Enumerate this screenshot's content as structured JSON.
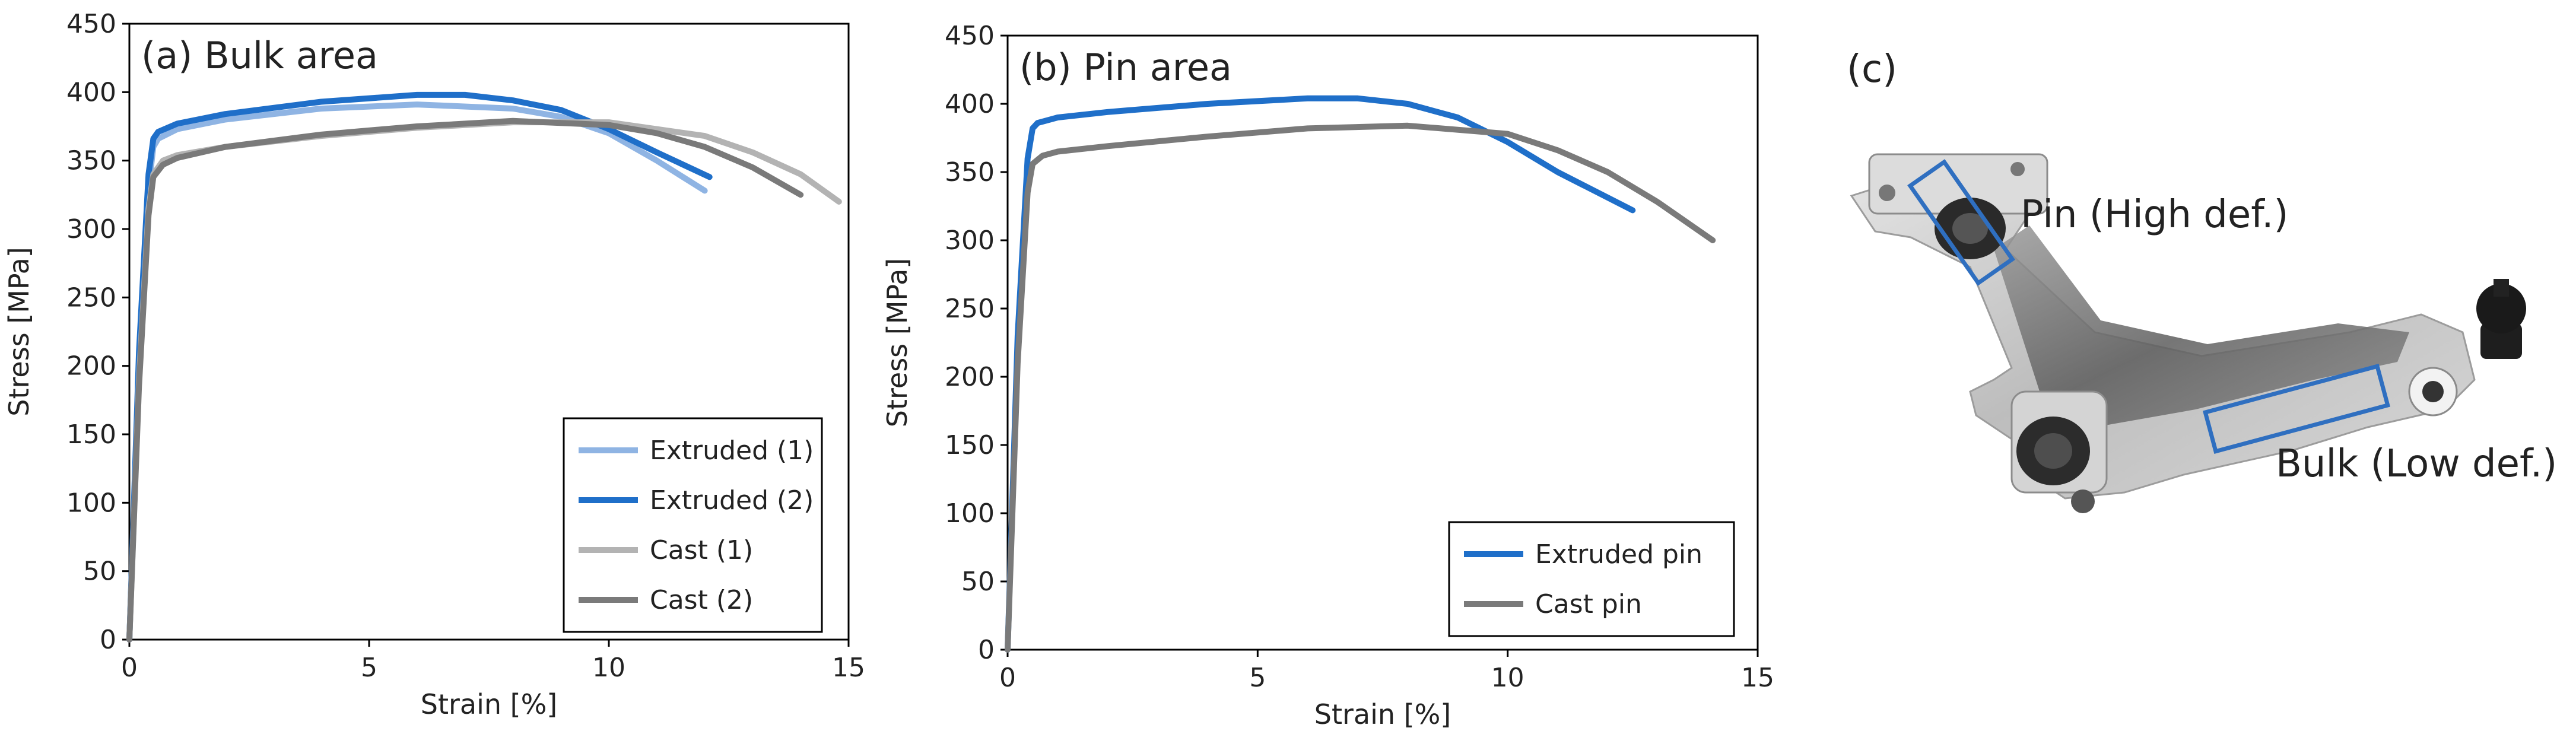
{
  "chart_data": [
    {
      "type": "line",
      "title": "(a) Bulk area",
      "xlabel": "Strain [%]",
      "ylabel": "Stress [MPa]",
      "xlim": [
        0,
        15
      ],
      "ylim": [
        0,
        450
      ],
      "xticks": [
        0,
        5,
        10,
        15
      ],
      "yticks": [
        0,
        50,
        100,
        150,
        200,
        250,
        300,
        350,
        400,
        450
      ],
      "grid": false,
      "legend_position": "bottom-right",
      "series": [
        {
          "name": "Extruded (1)",
          "color": "#8fb4e3",
          "x": [
            0,
            0.2,
            0.4,
            0.5,
            0.6,
            1,
            2,
            4,
            6,
            8,
            9,
            10,
            11,
            12
          ],
          "y": [
            0,
            200,
            330,
            360,
            366,
            373,
            380,
            388,
            391,
            388,
            382,
            370,
            350,
            328
          ]
        },
        {
          "name": "Extruded (2)",
          "color": "#1f6fc9",
          "x": [
            0,
            0.2,
            0.4,
            0.5,
            0.6,
            1,
            2,
            4,
            6,
            7,
            8,
            9,
            10,
            11,
            12.1
          ],
          "y": [
            0,
            210,
            340,
            366,
            371,
            377,
            384,
            393,
            398,
            398,
            394,
            387,
            373,
            356,
            338
          ]
        },
        {
          "name": "Cast (1)",
          "color": "#b3b3b3",
          "x": [
            0,
            0.2,
            0.4,
            0.5,
            0.7,
            1,
            2,
            4,
            6,
            8,
            10,
            12,
            13,
            14,
            14.8
          ],
          "y": [
            0,
            190,
            315,
            340,
            350,
            354,
            360,
            368,
            374,
            378,
            378,
            368,
            356,
            340,
            320
          ]
        },
        {
          "name": "Cast (2)",
          "color": "#7a7a7a",
          "x": [
            0,
            0.2,
            0.4,
            0.5,
            0.7,
            1,
            2,
            4,
            6,
            8,
            10,
            11,
            12,
            13,
            14
          ],
          "y": [
            0,
            185,
            310,
            338,
            347,
            352,
            360,
            369,
            375,
            379,
            376,
            370,
            360,
            345,
            325
          ]
        }
      ]
    },
    {
      "type": "line",
      "title": "(b) Pin area",
      "xlabel": "Strain [%]",
      "ylabel": "Stress [MPa]",
      "xlim": [
        0,
        15
      ],
      "ylim": [
        0,
        450
      ],
      "xticks": [
        0,
        5,
        10,
        15
      ],
      "yticks": [
        0,
        50,
        100,
        150,
        200,
        250,
        300,
        350,
        400,
        450
      ],
      "grid": false,
      "legend_position": "bottom-right",
      "series": [
        {
          "name": "Extruded pin",
          "color": "#1f6fc9",
          "x": [
            0,
            0.2,
            0.4,
            0.5,
            0.6,
            1,
            2,
            4,
            6,
            7,
            8,
            9,
            10,
            11,
            12.5
          ],
          "y": [
            0,
            230,
            360,
            382,
            386,
            390,
            394,
            400,
            404,
            404,
            400,
            390,
            372,
            350,
            322
          ]
        },
        {
          "name": "Cast pin",
          "color": "#7a7a7a",
          "x": [
            0,
            0.2,
            0.4,
            0.5,
            0.7,
            1,
            2,
            4,
            6,
            8,
            10,
            11,
            12,
            13,
            14.1
          ],
          "y": [
            0,
            210,
            335,
            356,
            362,
            365,
            369,
            376,
            382,
            384,
            378,
            366,
            350,
            328,
            300
          ]
        }
      ]
    }
  ],
  "photo": {
    "panel_label": "(c)",
    "pin_label": "Pin (High def.)",
    "bulk_label": "Bulk (Low def.)"
  }
}
